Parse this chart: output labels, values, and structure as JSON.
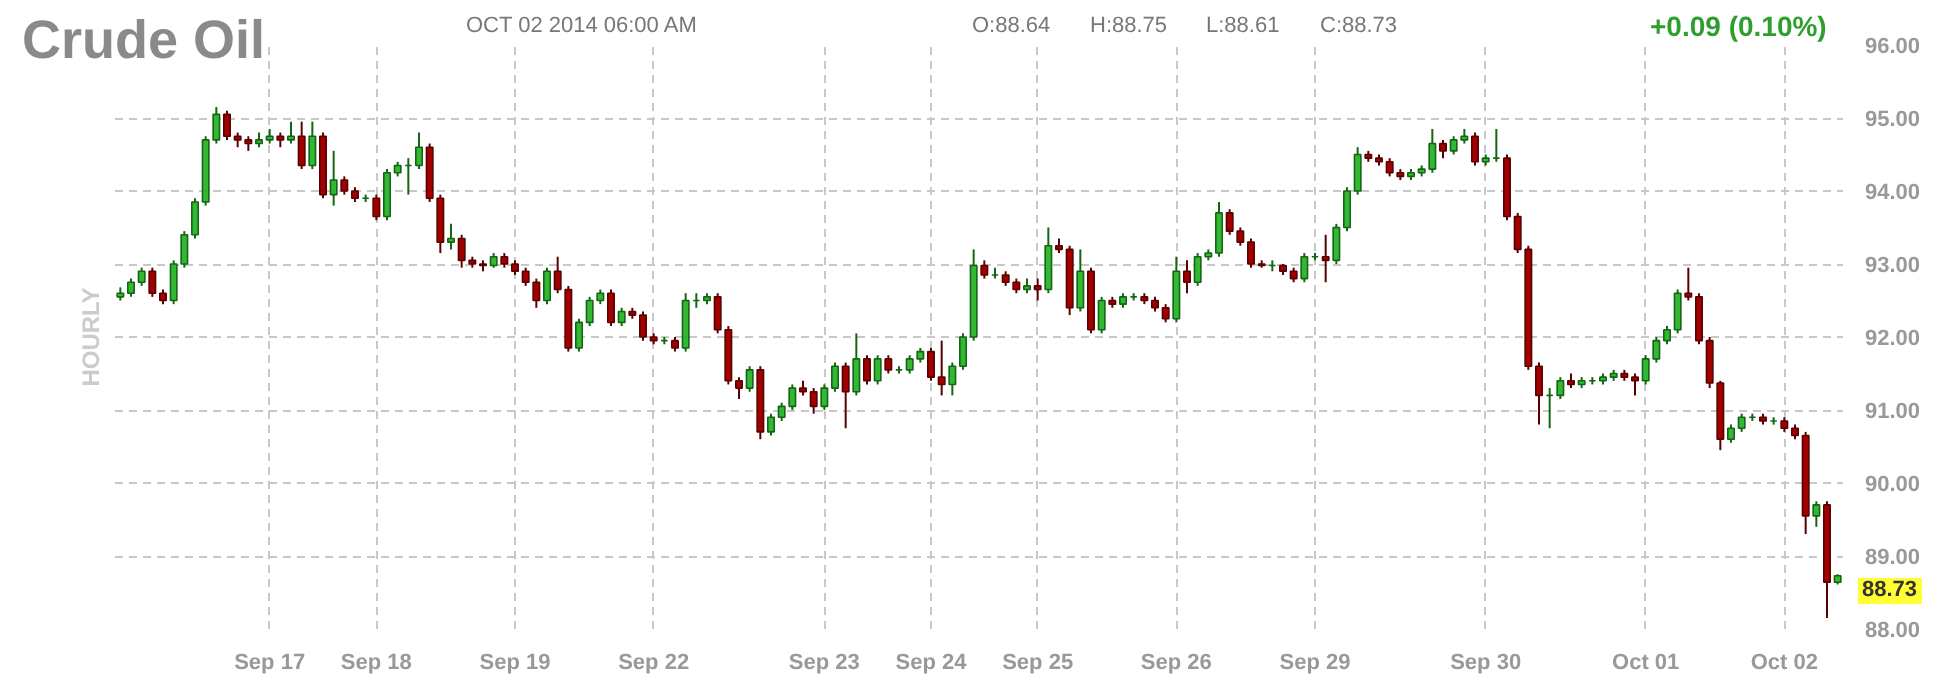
{
  "chart_data": {
    "type": "candlestick",
    "title": "Crude Oil",
    "subtitle": "OCT 02 2014 06:00 AM",
    "ylabel": "HOURLY",
    "annotations": [
      "O:88.64",
      "H:88.75",
      "L:88.61",
      "C:88.73",
      "+0.09 (0.10%)",
      "88.73"
    ],
    "ohlc": [
      [
        92.55,
        92.68,
        92.5,
        92.6
      ],
      [
        92.6,
        92.8,
        92.55,
        92.75
      ],
      [
        92.75,
        92.95,
        92.7,
        92.9
      ],
      [
        92.9,
        92.95,
        92.55,
        92.6
      ],
      [
        92.6,
        92.65,
        92.45,
        92.5
      ],
      [
        92.5,
        93.05,
        92.45,
        93.0
      ],
      [
        93.0,
        93.45,
        92.95,
        93.4
      ],
      [
        93.4,
        93.9,
        93.35,
        93.85
      ],
      [
        93.85,
        94.75,
        93.8,
        94.7
      ],
      [
        94.7,
        95.15,
        94.65,
        95.05
      ],
      [
        95.05,
        95.1,
        94.7,
        94.75
      ],
      [
        94.75,
        94.8,
        94.6,
        94.7
      ],
      [
        94.7,
        94.75,
        94.55,
        94.65
      ],
      [
        94.65,
        94.8,
        94.6,
        94.7
      ],
      [
        94.7,
        94.85,
        94.65,
        94.75
      ],
      [
        94.75,
        94.8,
        94.6,
        94.7
      ],
      [
        94.7,
        94.95,
        94.65,
        94.75
      ],
      [
        94.75,
        94.95,
        94.3,
        94.35
      ],
      [
        94.35,
        94.95,
        94.3,
        94.75
      ],
      [
        94.75,
        94.8,
        93.9,
        93.95
      ],
      [
        93.95,
        94.55,
        93.8,
        94.15
      ],
      [
        94.15,
        94.2,
        93.95,
        94.0
      ],
      [
        94.0,
        94.05,
        93.85,
        93.9
      ],
      [
        93.9,
        93.95,
        93.85,
        93.9
      ],
      [
        93.9,
        93.95,
        93.6,
        93.65
      ],
      [
        93.65,
        94.3,
        93.6,
        94.25
      ],
      [
        94.25,
        94.4,
        94.2,
        94.35
      ],
      [
        94.35,
        94.45,
        93.95,
        94.35
      ],
      [
        94.35,
        94.8,
        94.3,
        94.6
      ],
      [
        94.6,
        94.65,
        93.85,
        93.9
      ],
      [
        93.9,
        93.95,
        93.15,
        93.3
      ],
      [
        93.3,
        93.55,
        93.2,
        93.35
      ],
      [
        93.35,
        93.4,
        92.95,
        93.05
      ],
      [
        93.05,
        93.1,
        92.95,
        93.0
      ],
      [
        93.0,
        93.05,
        92.9,
        92.98
      ],
      [
        92.98,
        93.15,
        92.95,
        93.1
      ],
      [
        93.1,
        93.15,
        92.95,
        93.0
      ],
      [
        93.0,
        93.05,
        92.85,
        92.9
      ],
      [
        92.9,
        92.95,
        92.7,
        92.75
      ],
      [
        92.75,
        92.8,
        92.4,
        92.5
      ],
      [
        92.5,
        92.95,
        92.45,
        92.9
      ],
      [
        92.9,
        93.1,
        92.6,
        92.65
      ],
      [
        92.65,
        92.7,
        91.8,
        91.85
      ],
      [
        91.85,
        92.25,
        91.8,
        92.2
      ],
      [
        92.2,
        92.55,
        92.15,
        92.5
      ],
      [
        92.5,
        92.65,
        92.45,
        92.6
      ],
      [
        92.6,
        92.65,
        92.15,
        92.2
      ],
      [
        92.2,
        92.4,
        92.15,
        92.35
      ],
      [
        92.35,
        92.4,
        92.25,
        92.3
      ],
      [
        92.3,
        92.35,
        91.95,
        92.0
      ],
      [
        92.0,
        92.05,
        91.9,
        91.95
      ],
      [
        91.95,
        92.0,
        91.9,
        91.95
      ],
      [
        91.95,
        92.0,
        91.8,
        91.85
      ],
      [
        91.85,
        92.6,
        91.8,
        92.5
      ],
      [
        92.5,
        92.6,
        92.4,
        92.5
      ],
      [
        92.5,
        92.6,
        92.45,
        92.55
      ],
      [
        92.55,
        92.6,
        92.05,
        92.1
      ],
      [
        92.1,
        92.15,
        91.35,
        91.4
      ],
      [
        91.4,
        91.45,
        91.15,
        91.3
      ],
      [
        91.3,
        91.6,
        91.25,
        91.55
      ],
      [
        91.55,
        91.6,
        90.6,
        90.7
      ],
      [
        90.7,
        90.95,
        90.65,
        90.9
      ],
      [
        90.9,
        91.1,
        90.85,
        91.05
      ],
      [
        91.05,
        91.35,
        91.0,
        91.3
      ],
      [
        91.3,
        91.4,
        91.2,
        91.25
      ],
      [
        91.25,
        91.3,
        90.95,
        91.05
      ],
      [
        91.05,
        91.35,
        91.0,
        91.3
      ],
      [
        91.3,
        91.65,
        91.25,
        91.6
      ],
      [
        91.6,
        91.65,
        90.75,
        91.25
      ],
      [
        91.25,
        92.05,
        91.2,
        91.7
      ],
      [
        91.7,
        91.75,
        91.35,
        91.4
      ],
      [
        91.4,
        91.75,
        91.35,
        91.7
      ],
      [
        91.7,
        91.75,
        91.5,
        91.55
      ],
      [
        91.55,
        91.6,
        91.5,
        91.55
      ],
      [
        91.55,
        91.75,
        91.5,
        91.7
      ],
      [
        91.7,
        91.85,
        91.65,
        91.8
      ],
      [
        91.8,
        91.85,
        91.4,
        91.45
      ],
      [
        91.45,
        91.95,
        91.2,
        91.35
      ],
      [
        91.35,
        91.65,
        91.2,
        91.6
      ],
      [
        91.6,
        92.05,
        91.55,
        92.0
      ],
      [
        92.0,
        93.2,
        91.95,
        92.98
      ],
      [
        92.98,
        93.05,
        92.8,
        92.85
      ],
      [
        92.85,
        92.95,
        92.8,
        92.85
      ],
      [
        92.85,
        92.9,
        92.7,
        92.75
      ],
      [
        92.75,
        92.8,
        92.6,
        92.65
      ],
      [
        92.65,
        92.8,
        92.6,
        92.7
      ],
      [
        92.7,
        92.8,
        92.5,
        92.65
      ],
      [
        92.65,
        93.5,
        92.6,
        93.25
      ],
      [
        93.25,
        93.35,
        93.15,
        93.2
      ],
      [
        93.2,
        93.25,
        92.3,
        92.4
      ],
      [
        92.4,
        93.2,
        92.35,
        92.9
      ],
      [
        92.9,
        92.95,
        92.05,
        92.1
      ],
      [
        92.1,
        92.55,
        92.05,
        92.5
      ],
      [
        92.5,
        92.55,
        92.4,
        92.45
      ],
      [
        92.45,
        92.6,
        92.4,
        92.55
      ],
      [
        92.55,
        92.6,
        92.5,
        92.55
      ],
      [
        92.55,
        92.6,
        92.45,
        92.5
      ],
      [
        92.5,
        92.55,
        92.35,
        92.4
      ],
      [
        92.4,
        92.45,
        92.2,
        92.25
      ],
      [
        92.25,
        93.1,
        92.2,
        92.9
      ],
      [
        92.9,
        93.05,
        92.6,
        92.75
      ],
      [
        92.75,
        93.15,
        92.7,
        93.1
      ],
      [
        93.1,
        93.2,
        93.05,
        93.15
      ],
      [
        93.15,
        93.85,
        93.1,
        93.7
      ],
      [
        93.7,
        93.75,
        93.4,
        93.45
      ],
      [
        93.45,
        93.5,
        93.25,
        93.3
      ],
      [
        93.3,
        93.35,
        92.95,
        93.0
      ],
      [
        93.0,
        93.05,
        92.95,
        92.98
      ],
      [
        92.98,
        93.05,
        92.9,
        92.98
      ],
      [
        92.98,
        93.0,
        92.85,
        92.9
      ],
      [
        92.9,
        92.95,
        92.75,
        92.8
      ],
      [
        92.8,
        93.15,
        92.75,
        93.1
      ],
      [
        93.1,
        93.15,
        93.05,
        93.1
      ],
      [
        93.1,
        93.4,
        92.75,
        93.05
      ],
      [
        93.05,
        93.55,
        93.0,
        93.5
      ],
      [
        93.5,
        94.05,
        93.45,
        94.0
      ],
      [
        94.0,
        94.6,
        93.95,
        94.5
      ],
      [
        94.5,
        94.55,
        94.4,
        94.45
      ],
      [
        94.45,
        94.5,
        94.35,
        94.4
      ],
      [
        94.4,
        94.45,
        94.2,
        94.25
      ],
      [
        94.25,
        94.3,
        94.15,
        94.2
      ],
      [
        94.2,
        94.3,
        94.15,
        94.25
      ],
      [
        94.25,
        94.35,
        94.2,
        94.3
      ],
      [
        94.3,
        94.85,
        94.25,
        94.65
      ],
      [
        94.65,
        94.7,
        94.45,
        94.55
      ],
      [
        94.55,
        94.75,
        94.5,
        94.7
      ],
      [
        94.7,
        94.85,
        94.65,
        94.75
      ],
      [
        94.75,
        94.8,
        94.35,
        94.4
      ],
      [
        94.4,
        94.5,
        94.35,
        94.45
      ],
      [
        94.45,
        94.85,
        94.4,
        94.45
      ],
      [
        94.45,
        94.5,
        93.6,
        93.65
      ],
      [
        93.65,
        93.7,
        93.15,
        93.2
      ],
      [
        93.2,
        93.25,
        91.55,
        91.6
      ],
      [
        91.6,
        91.65,
        90.8,
        91.2
      ],
      [
        91.2,
        91.3,
        90.75,
        91.2
      ],
      [
        91.2,
        91.45,
        91.15,
        91.4
      ],
      [
        91.4,
        91.5,
        91.3,
        91.35
      ],
      [
        91.35,
        91.45,
        91.3,
        91.4
      ],
      [
        91.4,
        91.45,
        91.35,
        91.4
      ],
      [
        91.4,
        91.5,
        91.35,
        91.45
      ],
      [
        91.45,
        91.55,
        91.4,
        91.5
      ],
      [
        91.5,
        91.55,
        91.4,
        91.45
      ],
      [
        91.45,
        91.5,
        91.2,
        91.4
      ],
      [
        91.4,
        91.75,
        91.35,
        91.7
      ],
      [
        91.7,
        92.0,
        91.65,
        91.95
      ],
      [
        91.95,
        92.15,
        91.9,
        92.1
      ],
      [
        92.1,
        92.65,
        92.05,
        92.6
      ],
      [
        92.6,
        92.95,
        92.5,
        92.55
      ],
      [
        92.55,
        92.6,
        91.9,
        91.95
      ],
      [
        91.95,
        92.0,
        91.3,
        91.37
      ],
      [
        91.37,
        91.4,
        90.45,
        90.6
      ],
      [
        90.6,
        90.8,
        90.55,
        90.75
      ],
      [
        90.75,
        90.95,
        90.7,
        90.9
      ],
      [
        90.9,
        90.95,
        90.85,
        90.9
      ],
      [
        90.9,
        90.95,
        90.8,
        90.85
      ],
      [
        90.85,
        90.9,
        90.8,
        90.85
      ],
      [
        90.85,
        90.9,
        90.7,
        90.75
      ],
      [
        90.75,
        90.8,
        90.6,
        90.65
      ],
      [
        90.65,
        90.7,
        89.3,
        89.55
      ],
      [
        89.55,
        89.75,
        89.4,
        89.7
      ],
      [
        89.7,
        89.75,
        88.15,
        88.64
      ],
      [
        88.64,
        88.75,
        88.61,
        88.73
      ]
    ],
    "categories": [
      null,
      null,
      null,
      null,
      null,
      null,
      null,
      null,
      null,
      null,
      null,
      null,
      null,
      null,
      "Sep 17",
      null,
      null,
      null,
      null,
      null,
      null,
      null,
      null,
      null,
      "Sep 18",
      null,
      null,
      null,
      null,
      null,
      null,
      null,
      null,
      null,
      null,
      null,
      null,
      "Sep 19",
      null,
      null,
      null,
      null,
      null,
      null,
      null,
      null,
      null,
      null,
      null,
      null,
      "Sep 22",
      null,
      null,
      null,
      null,
      null,
      null,
      null,
      null,
      null,
      null,
      null,
      null,
      null,
      null,
      null,
      "Sep 23",
      null,
      null,
      null,
      null,
      null,
      null,
      null,
      null,
      null,
      "Sep 24",
      null,
      null,
      null,
      null,
      null,
      null,
      null,
      null,
      null,
      "Sep 25",
      null,
      null,
      null,
      null,
      null,
      null,
      null,
      null,
      null,
      null,
      null,
      null,
      "Sep 26",
      null,
      null,
      null,
      null,
      null,
      null,
      null,
      null,
      null,
      null,
      null,
      null,
      "Sep 29",
      null,
      null,
      null,
      null,
      null,
      null,
      null,
      null,
      null,
      null,
      null,
      null,
      null,
      null,
      null,
      "Sep 30",
      null,
      null,
      null,
      null,
      null,
      null,
      null,
      null,
      null,
      null,
      null,
      null,
      null,
      null,
      "Oct 01",
      null,
      null,
      null,
      null,
      null,
      null,
      null,
      null,
      null,
      null,
      null,
      null,
      "Oct 02",
      null,
      null,
      null,
      null,
      null
    ],
    "ylim": [
      88,
      96
    ],
    "yticks": [
      {
        "value": 88,
        "label": "88.00"
      },
      {
        "value": 89,
        "label": "89.00"
      },
      {
        "value": 90,
        "label": "90.00"
      },
      {
        "value": 91,
        "label": "91.00"
      },
      {
        "value": 92,
        "label": "92.00"
      },
      {
        "value": 93,
        "label": "93.00"
      },
      {
        "value": 94,
        "label": "94.00"
      },
      {
        "value": 95,
        "label": "95.00"
      },
      {
        "value": 96,
        "label": "96.00"
      }
    ],
    "grid": true
  }
}
